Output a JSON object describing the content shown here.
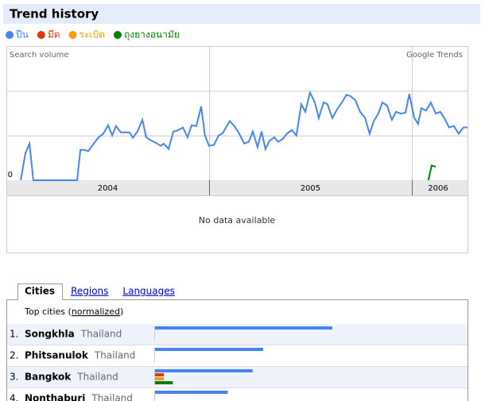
{
  "header": {
    "title": "Trend history"
  },
  "chart_data": {
    "type": "line",
    "brand": "Google Trends",
    "ylabel": "Search volume",
    "empty_note": "No data available",
    "xlim": [
      2004,
      2006.275
    ],
    "ylim": [
      0,
      3
    ],
    "xticks": [
      {
        "value": 2004.5,
        "label": "2004"
      },
      {
        "value": 2005.5,
        "label": "2005"
      },
      {
        "value": 2006.13,
        "label": "2006"
      }
    ],
    "xdividers": [
      2005,
      2006
    ],
    "yticks": [
      0
    ],
    "ygrid": [
      1,
      2
    ],
    "series": [
      {
        "name": "ปืน",
        "color": "#4684ee",
        "x": [
          2004.071,
          2004.094,
          2004.114,
          2004.133,
          2004.349,
          2004.365,
          2004.384,
          2004.404,
          2004.431,
          2004.455,
          2004.478,
          2004.502,
          2004.522,
          2004.541,
          2004.565,
          2004.588,
          2004.608,
          2004.624,
          2004.647,
          2004.671,
          2004.69,
          2004.714,
          2004.737,
          2004.761,
          2004.776,
          2004.8,
          2004.824,
          2004.843,
          2004.871,
          2004.894,
          2004.914,
          2004.937,
          2004.961,
          2004.98,
          2005.0,
          2005.024,
          2005.047,
          2005.067,
          2005.102,
          2005.125,
          2005.149,
          2005.173,
          2005.196,
          2005.216,
          2005.239,
          2005.259,
          2005.278,
          2005.298,
          2005.322,
          2005.341,
          2005.365,
          2005.384,
          2005.408,
          2005.431,
          2005.455,
          2005.475,
          2005.498,
          2005.522,
          2005.541,
          2005.565,
          2005.584,
          2005.608,
          2005.631,
          2005.655,
          2005.678,
          2005.698,
          2005.722,
          2005.745,
          2005.769,
          2005.792,
          2005.812,
          2005.835,
          2005.855,
          2005.878,
          2005.902,
          2005.922,
          2005.945,
          2005.969,
          2005.988,
          2006.012,
          2006.031,
          2006.047,
          2006.071,
          2006.094,
          2006.118,
          2006.141,
          2006.165,
          2006.184,
          2006.208,
          2006.231,
          2006.255,
          2006.275
        ],
        "values": [
          0,
          0.61,
          0.82,
          0,
          0,
          0.68,
          0.68,
          0.65,
          0.82,
          0.96,
          1.04,
          1.23,
          1.0,
          1.21,
          1.07,
          1.07,
          1.07,
          0.95,
          1.09,
          1.35,
          0.96,
          0.89,
          0.84,
          0.77,
          0.82,
          0.7,
          1.09,
          1.11,
          1.18,
          0.96,
          1.23,
          1.21,
          1.65,
          1.0,
          0.77,
          0.79,
          1.0,
          1.05,
          1.32,
          1.21,
          1.04,
          0.82,
          0.86,
          1.09,
          0.74,
          1.09,
          0.7,
          0.88,
          0.96,
          0.86,
          0.93,
          1.04,
          1.12,
          1.0,
          1.7,
          1.53,
          1.96,
          1.74,
          1.39,
          1.74,
          1.7,
          1.39,
          1.58,
          1.74,
          1.91,
          1.88,
          1.79,
          1.53,
          1.4,
          1.04,
          1.32,
          1.49,
          1.74,
          1.67,
          1.35,
          1.53,
          1.49,
          1.51,
          1.93,
          1.4,
          1.26,
          1.61,
          1.56,
          1.74,
          1.49,
          1.53,
          1.35,
          1.18,
          1.21,
          1.04,
          1.18,
          1.18
        ]
      },
      {
        "name": "มีด",
        "color": "#dc3912",
        "x": [],
        "values": []
      },
      {
        "name": "ระเบิด",
        "color": "#ff9900",
        "x": [],
        "values": []
      },
      {
        "name": "ถุงยางอนามัย",
        "color": "#008000",
        "x": [
          2006.082,
          2006.098,
          2006.118
        ],
        "values": [
          0,
          0.33,
          0.3
        ]
      }
    ]
  },
  "tabs": [
    "Cities",
    "Regions",
    "Languages"
  ],
  "cities": {
    "prefix": "Top cities (",
    "link": "normalized",
    "suffix": ")",
    "xlim": [
      0,
      100
    ],
    "rows": [
      {
        "rank": "1.",
        "city": "Songkhla",
        "country": "Thailand",
        "values": [
          100,
          0,
          0,
          0
        ]
      },
      {
        "rank": "2.",
        "city": "Phitsanulok",
        "country": "Thailand",
        "values": [
          61,
          0,
          0,
          0
        ]
      },
      {
        "rank": "3.",
        "city": "Bangkok",
        "country": "Thailand",
        "values": [
          55,
          5,
          5,
          10
        ]
      },
      {
        "rank": "4.",
        "city": "Nonthaburi",
        "country": "Thailand",
        "values": [
          41,
          0,
          0,
          0
        ]
      }
    ]
  }
}
